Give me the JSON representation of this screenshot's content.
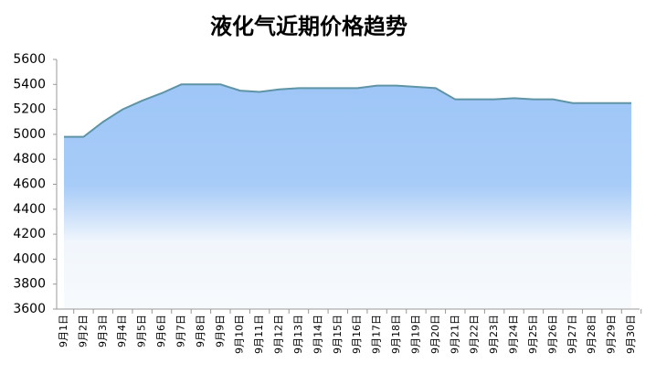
{
  "chart_data": {
    "type": "area",
    "title": "液化气近期价格趋势",
    "categories": [
      "9月1日",
      "9月2日",
      "9月3日",
      "9月4日",
      "9月5日",
      "9月6日",
      "9月7日",
      "9月8日",
      "9月9日",
      "9月10日",
      "9月11日",
      "9月12日",
      "9月13日",
      "9月14日",
      "9月15日",
      "9月16日",
      "9月17日",
      "9月18日",
      "9月19日",
      "9月20日",
      "9月21日",
      "9月22日",
      "9月23日",
      "9月24日",
      "9月25日",
      "9月26日",
      "9月27日",
      "9月28日",
      "9月29日",
      "9月30日"
    ],
    "values": [
      4980,
      4980,
      5100,
      5200,
      5270,
      5330,
      5400,
      5400,
      5400,
      5350,
      5340,
      5360,
      5370,
      5370,
      5370,
      5370,
      5390,
      5390,
      5380,
      5370,
      5280,
      5280,
      5280,
      5290,
      5280,
      5280,
      5250,
      5250,
      5250,
      5250
    ],
    "color": "#5e94a6",
    "fill_color": "#9ec6f7",
    "ylim": [
      3600,
      5600
    ],
    "yticks": [
      3600,
      3800,
      4000,
      4200,
      4400,
      4600,
      4800,
      5000,
      5200,
      5400,
      5600
    ],
    "grid": false
  }
}
